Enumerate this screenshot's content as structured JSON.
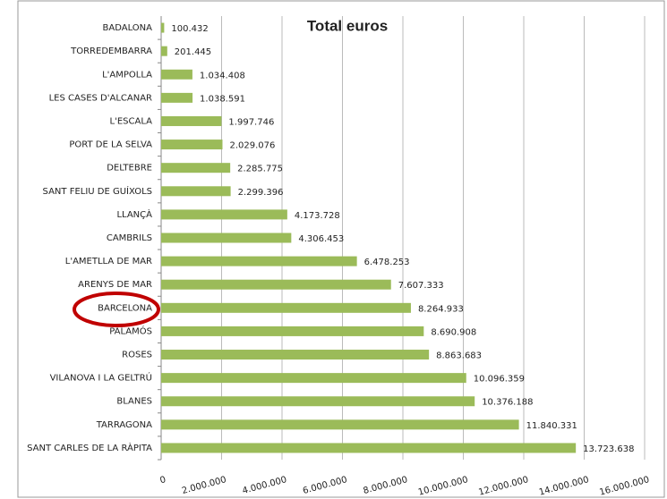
{
  "chart_data": {
    "type": "barh",
    "title": "Total euros",
    "categories": [
      "BADALONA",
      "TORREDEMBARRA",
      "L'AMPOLLA",
      "LES CASES D'ALCANAR",
      "L'ESCALA",
      "PORT DE LA SELVA",
      "DELTEBRE",
      "SANT FELIU DE GUÍXOLS",
      "LLANÇÀ",
      "CAMBRILS",
      "L'AMETLLA DE MAR",
      "ARENYS DE MAR",
      "BARCELONA",
      "PALAMÓS",
      "ROSES",
      "VILANOVA I LA GELTRÚ",
      "BLANES",
      "TARRAGONA",
      "SANT CARLES DE LA RÀPITA"
    ],
    "values": [
      100432,
      201445,
      1034408,
      1038591,
      1997746,
      2029076,
      2285775,
      2299396,
      4173728,
      4306453,
      6478253,
      7607333,
      8264933,
      8690908,
      8863683,
      10096359,
      10376188,
      11840331,
      13723638
    ],
    "value_labels": [
      "100.432",
      "201.445",
      "1.034.408",
      "1.038.591",
      "1.997.746",
      "2.029.076",
      "2.285.775",
      "2.299.396",
      "4.173.728",
      "4.306.453",
      "6.478.253",
      "7.607.333",
      "8.264.933",
      "8.690.908",
      "8.863.683",
      "10.096.359",
      "10.376.188",
      "11.840.331",
      "13.723.638"
    ],
    "color": "#9bbb59",
    "xlim": [
      0,
      16000000
    ],
    "xticks": [
      0,
      {
        "value": 2000000,
        "label": "2.000.000"
      },
      {
        "value": 4000000,
        "label": "4.000.000"
      },
      {
        "value": 6000000,
        "label": "6.000.000"
      },
      {
        "value": 8000000,
        "label": "8.000.000"
      },
      {
        "value": 10000000,
        "label": "10.000.000"
      },
      {
        "value": 12000000,
        "label": "12.000.000"
      },
      {
        "value": 14000000,
        "label": "14.000.000"
      },
      {
        "value": 16000000,
        "label": "16.000.000"
      }
    ],
    "grid": true
  }
}
